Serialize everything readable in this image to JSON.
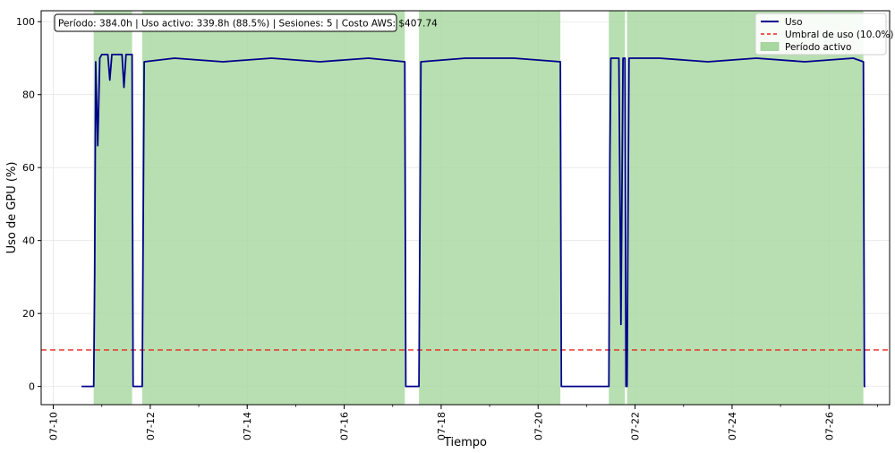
{
  "chart_data": {
    "type": "line",
    "title": "",
    "annotation": "Período: 384.0h | Uso activo: 339.8h (88.5%) | Sesiones: 5 | Costo AWS: $407.74",
    "xlabel": "Tiempo",
    "ylabel": "Uso de GPU (%)",
    "xlim": [
      "2023-07-09 18:00",
      "2023-07-27 06:00"
    ],
    "ylim": [
      -5,
      103
    ],
    "x_ticks": [
      "07-10",
      "07-12",
      "07-14",
      "07-16",
      "07-18",
      "07-20",
      "07-22",
      "07-24",
      "07-26"
    ],
    "y_ticks": [
      0,
      20,
      40,
      60,
      80,
      100
    ],
    "grid": true,
    "legend_position": "top-right",
    "legend": [
      {
        "label": "Uso",
        "color": "#00008b",
        "style": "line"
      },
      {
        "label": "Umbral de uso (10.0%)",
        "color": "#e8271f",
        "style": "dashed"
      },
      {
        "label": "Período activo",
        "color": "#a7d8a0",
        "style": "patch"
      }
    ],
    "threshold": {
      "value": 10.0,
      "color": "#e8271f"
    },
    "active_periods": [
      {
        "start": "2023-07-10 20:00",
        "end": "2023-07-11 15:00"
      },
      {
        "start": "2023-07-11 20:00",
        "end": "2023-07-17 06:00"
      },
      {
        "start": "2023-07-17 13:00",
        "end": "2023-07-20 11:00"
      },
      {
        "start": "2023-07-21 11:00",
        "end": "2023-07-21 19:00"
      },
      {
        "start": "2023-07-21 20:00",
        "end": "2023-07-26 17:00"
      }
    ],
    "series": [
      {
        "name": "Uso",
        "color": "#00008b",
        "points": [
          [
            "2023-07-10 14:00",
            0
          ],
          [
            "2023-07-10 20:00",
            0
          ],
          [
            "2023-07-10 20:30",
            31
          ],
          [
            "2023-07-10 21:00",
            89
          ],
          [
            "2023-07-10 22:00",
            66
          ],
          [
            "2023-07-10 23:00",
            90
          ],
          [
            "2023-07-11 00:00",
            91
          ],
          [
            "2023-07-11 03:00",
            91
          ],
          [
            "2023-07-11 04:00",
            84
          ],
          [
            "2023-07-11 05:00",
            91
          ],
          [
            "2023-07-11 10:00",
            91
          ],
          [
            "2023-07-11 11:00",
            82
          ],
          [
            "2023-07-11 12:00",
            91
          ],
          [
            "2023-07-11 15:00",
            91
          ],
          [
            "2023-07-11 15:30",
            0
          ],
          [
            "2023-07-11 20:00",
            0
          ],
          [
            "2023-07-11 21:00",
            89
          ],
          [
            "2023-07-12 12:00",
            90
          ],
          [
            "2023-07-13 12:00",
            89
          ],
          [
            "2023-07-14 12:00",
            90
          ],
          [
            "2023-07-15 12:00",
            89
          ],
          [
            "2023-07-16 12:00",
            90
          ],
          [
            "2023-07-17 06:00",
            89
          ],
          [
            "2023-07-17 06:30",
            0
          ],
          [
            "2023-07-17 13:00",
            0
          ],
          [
            "2023-07-17 14:00",
            89
          ],
          [
            "2023-07-18 12:00",
            90
          ],
          [
            "2023-07-19 12:00",
            90
          ],
          [
            "2023-07-20 11:00",
            89
          ],
          [
            "2023-07-20 11:30",
            0
          ],
          [
            "2023-07-21 11:00",
            0
          ],
          [
            "2023-07-21 11:30",
            61
          ],
          [
            "2023-07-21 12:00",
            90
          ],
          [
            "2023-07-21 16:00",
            90
          ],
          [
            "2023-07-21 17:00",
            17
          ],
          [
            "2023-07-21 18:00",
            90
          ],
          [
            "2023-07-21 19:00",
            90
          ],
          [
            "2023-07-21 19:30",
            0
          ],
          [
            "2023-07-21 20:00",
            0
          ],
          [
            "2023-07-21 21:00",
            90
          ],
          [
            "2023-07-22 12:00",
            90
          ],
          [
            "2023-07-23 12:00",
            89
          ],
          [
            "2023-07-24 12:00",
            90
          ],
          [
            "2023-07-25 12:00",
            89
          ],
          [
            "2023-07-26 12:00",
            90
          ],
          [
            "2023-07-26 17:00",
            89
          ],
          [
            "2023-07-26 17:30",
            0
          ],
          [
            "2023-07-26 18:00",
            0
          ]
        ]
      }
    ]
  }
}
